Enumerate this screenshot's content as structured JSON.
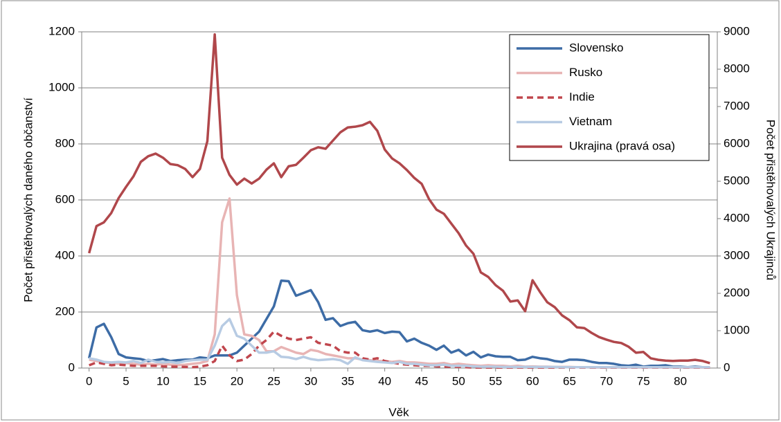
{
  "chart_data": {
    "type": "line",
    "xlabel": "Věk",
    "ylabel": "Počet přistěhovalých daného občanství",
    "y2label": "Počet přistěhovalých Ukrajinců",
    "x": [
      0,
      1,
      2,
      3,
      4,
      5,
      6,
      7,
      8,
      9,
      10,
      11,
      12,
      13,
      14,
      15,
      16,
      17,
      18,
      19,
      20,
      21,
      22,
      23,
      24,
      25,
      26,
      27,
      28,
      29,
      30,
      31,
      32,
      33,
      34,
      35,
      36,
      37,
      38,
      39,
      40,
      41,
      42,
      43,
      44,
      45,
      46,
      47,
      48,
      49,
      50,
      51,
      52,
      53,
      54,
      55,
      56,
      57,
      58,
      59,
      60,
      61,
      62,
      63,
      64,
      65,
      66,
      67,
      68,
      69,
      70,
      71,
      72,
      73,
      74,
      75,
      76,
      77,
      78,
      79,
      80,
      81,
      82,
      83,
      84
    ],
    "xlim": [
      -1,
      85
    ],
    "xticks": [
      0,
      5,
      10,
      15,
      20,
      25,
      30,
      35,
      40,
      45,
      50,
      55,
      60,
      65,
      70,
      75,
      80
    ],
    "ylim": [
      0,
      1200
    ],
    "yticks": [
      0,
      200,
      400,
      600,
      800,
      1000,
      1200
    ],
    "y2lim": [
      0,
      9000
    ],
    "y2ticks": [
      0,
      1000,
      2000,
      3000,
      4000,
      5000,
      6000,
      7000,
      8000,
      9000
    ],
    "grid": true,
    "legend": "upper right",
    "series": [
      {
        "name": "Slovensko",
        "color": "#3d6ca6",
        "dash": "solid",
        "values": [
          35,
          145,
          158,
          110,
          50,
          38,
          35,
          32,
          25,
          28,
          32,
          25,
          28,
          30,
          30,
          38,
          35,
          45,
          45,
          45,
          55,
          80,
          105,
          130,
          175,
          220,
          312,
          310,
          258,
          268,
          278,
          235,
          172,
          178,
          150,
          160,
          165,
          135,
          130,
          135,
          125,
          130,
          128,
          95,
          105,
          90,
          80,
          65,
          80,
          55,
          65,
          45,
          58,
          38,
          48,
          42,
          40,
          40,
          28,
          30,
          40,
          35,
          32,
          25,
          22,
          30,
          30,
          28,
          22,
          18,
          18,
          15,
          10,
          8,
          12,
          5,
          8,
          8,
          10,
          5,
          5,
          3,
          5,
          3,
          2
        ]
      },
      {
        "name": "Rusko",
        "color": "#e8b4b4",
        "dash": "solid",
        "values": [
          30,
          25,
          20,
          18,
          15,
          18,
          15,
          12,
          15,
          12,
          15,
          12,
          10,
          12,
          15,
          18,
          25,
          120,
          520,
          605,
          260,
          120,
          115,
          100,
          60,
          60,
          75,
          65,
          55,
          50,
          65,
          60,
          50,
          45,
          40,
          35,
          35,
          30,
          28,
          25,
          25,
          22,
          25,
          20,
          20,
          18,
          15,
          15,
          18,
          12,
          15,
          12,
          10,
          8,
          10,
          8,
          8,
          6,
          8,
          5,
          6,
          5,
          5,
          4,
          4,
          4,
          3,
          3,
          2,
          2,
          2,
          2,
          2,
          2,
          2,
          2,
          2,
          2,
          2,
          2,
          2,
          2,
          2,
          2,
          2
        ]
      },
      {
        "name": "Indie",
        "color": "#c0464d",
        "dash": "dashed",
        "values": [
          10,
          20,
          15,
          10,
          12,
          10,
          8,
          8,
          8,
          8,
          6,
          5,
          5,
          4,
          3,
          5,
          10,
          25,
          80,
          45,
          25,
          30,
          50,
          80,
          100,
          130,
          115,
          105,
          100,
          105,
          110,
          90,
          85,
          80,
          60,
          55,
          55,
          35,
          30,
          35,
          25,
          20,
          15,
          12,
          10,
          8,
          8,
          6,
          5,
          5,
          4,
          3,
          2,
          2,
          2,
          2,
          2,
          2,
          2,
          2,
          2,
          2,
          2,
          2,
          2,
          2,
          2,
          2,
          2,
          2,
          2,
          2,
          2,
          2,
          2,
          2,
          2,
          2,
          2,
          2,
          2,
          2,
          2,
          2,
          2
        ]
      },
      {
        "name": "Vietnam",
        "color": "#b7cbe3",
        "dash": "solid",
        "values": [
          35,
          30,
          22,
          20,
          22,
          20,
          25,
          18,
          30,
          22,
          20,
          22,
          18,
          25,
          28,
          30,
          30,
          80,
          150,
          175,
          115,
          105,
          80,
          55,
          55,
          60,
          40,
          38,
          32,
          40,
          32,
          28,
          30,
          32,
          28,
          15,
          38,
          28,
          25,
          22,
          20,
          18,
          22,
          15,
          15,
          12,
          10,
          10,
          12,
          8,
          8,
          8,
          6,
          5,
          5,
          5,
          4,
          4,
          4,
          4,
          4,
          4,
          4,
          4,
          3,
          3,
          3,
          3,
          3,
          3,
          3,
          3,
          3,
          3,
          3,
          3,
          3,
          3,
          3,
          3,
          3,
          3,
          3,
          3,
          3
        ]
      },
      {
        "name": "Ukrajina (pravá osa)",
        "color": "#b0474b",
        "dash": "solid",
        "axis": "y2",
        "values": [
          3075,
          3800,
          3900,
          4150,
          4550,
          4850,
          5130,
          5520,
          5670,
          5740,
          5630,
          5460,
          5430,
          5330,
          5110,
          5330,
          6070,
          8930,
          5630,
          5170,
          4910,
          5070,
          4940,
          5070,
          5310,
          5480,
          5110,
          5400,
          5440,
          5630,
          5830,
          5910,
          5870,
          6090,
          6310,
          6440,
          6460,
          6500,
          6590,
          6350,
          5850,
          5610,
          5480,
          5300,
          5090,
          4930,
          4520,
          4240,
          4130,
          3870,
          3610,
          3280,
          3060,
          2560,
          2440,
          2220,
          2070,
          1780,
          1810,
          1520,
          2350,
          2040,
          1760,
          1630,
          1410,
          1280,
          1090,
          1070,
          940,
          830,
          760,
          700,
          670,
          570,
          410,
          430,
          260,
          220,
          200,
          190,
          200,
          200,
          220,
          190,
          130
        ]
      }
    ]
  }
}
